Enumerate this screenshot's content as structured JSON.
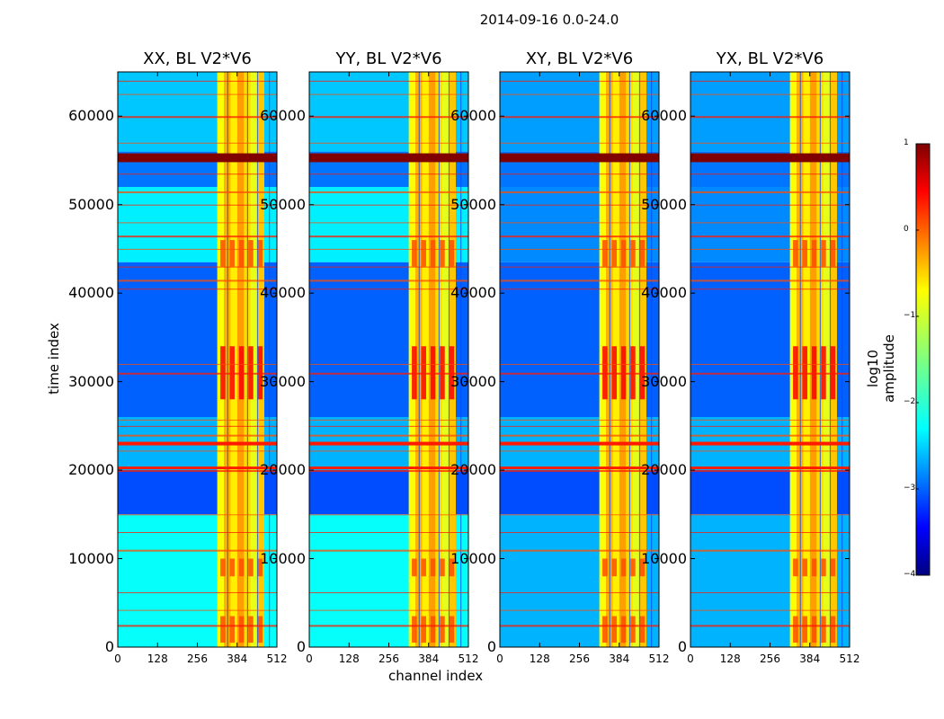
{
  "chart_data": [
    {
      "type": "heatmap",
      "title": "XX, BL V2*V6",
      "xlabel": "channel index",
      "ylabel": "time index",
      "xlim": [
        0,
        512
      ],
      "ylim": [
        0,
        65000
      ],
      "x_ticks": [
        "0",
        "128",
        "256",
        "384",
        "512"
      ],
      "y_ticks": [
        "0",
        "10000",
        "20000",
        "30000",
        "40000",
        "50000",
        "60000"
      ]
    },
    {
      "type": "heatmap",
      "title": "YY, BL V2*V6",
      "xlabel": "channel index",
      "xlim": [
        0,
        512
      ],
      "ylim": [
        0,
        65000
      ],
      "x_ticks": [
        "0",
        "128",
        "256",
        "384",
        "512"
      ],
      "y_ticks": [
        "0",
        "10000",
        "20000",
        "30000",
        "40000",
        "50000",
        "60000"
      ]
    },
    {
      "type": "heatmap",
      "title": "XY, BL V2*V6",
      "xlabel": "channel index",
      "xlim": [
        0,
        512
      ],
      "ylim": [
        0,
        65000
      ],
      "x_ticks": [
        "0",
        "128",
        "256",
        "384",
        "512"
      ],
      "y_ticks": [
        "0",
        "10000",
        "20000",
        "30000",
        "40000",
        "50000",
        "60000"
      ]
    },
    {
      "type": "heatmap",
      "title": "YX, BL V2*V6",
      "xlabel": "channel index",
      "xlim": [
        0,
        512
      ],
      "ylim": [
        0,
        65000
      ],
      "x_ticks": [
        "0",
        "128",
        "256",
        "384",
        "512"
      ],
      "y_ticks": [
        "0",
        "10000",
        "20000",
        "30000",
        "40000",
        "50000",
        "60000"
      ]
    }
  ],
  "figure": {
    "suptitle": "2014-09-16 0.0-24.0",
    "shared_xlabel": "channel index",
    "shared_ylabel": "time index"
  },
  "colorbar": {
    "label": "log10 amplitude",
    "range": [
      -4,
      1
    ],
    "ticks": [
      "1",
      "0",
      "−1",
      "−2",
      "−3",
      "−4"
    ],
    "colormap": "jet"
  }
}
